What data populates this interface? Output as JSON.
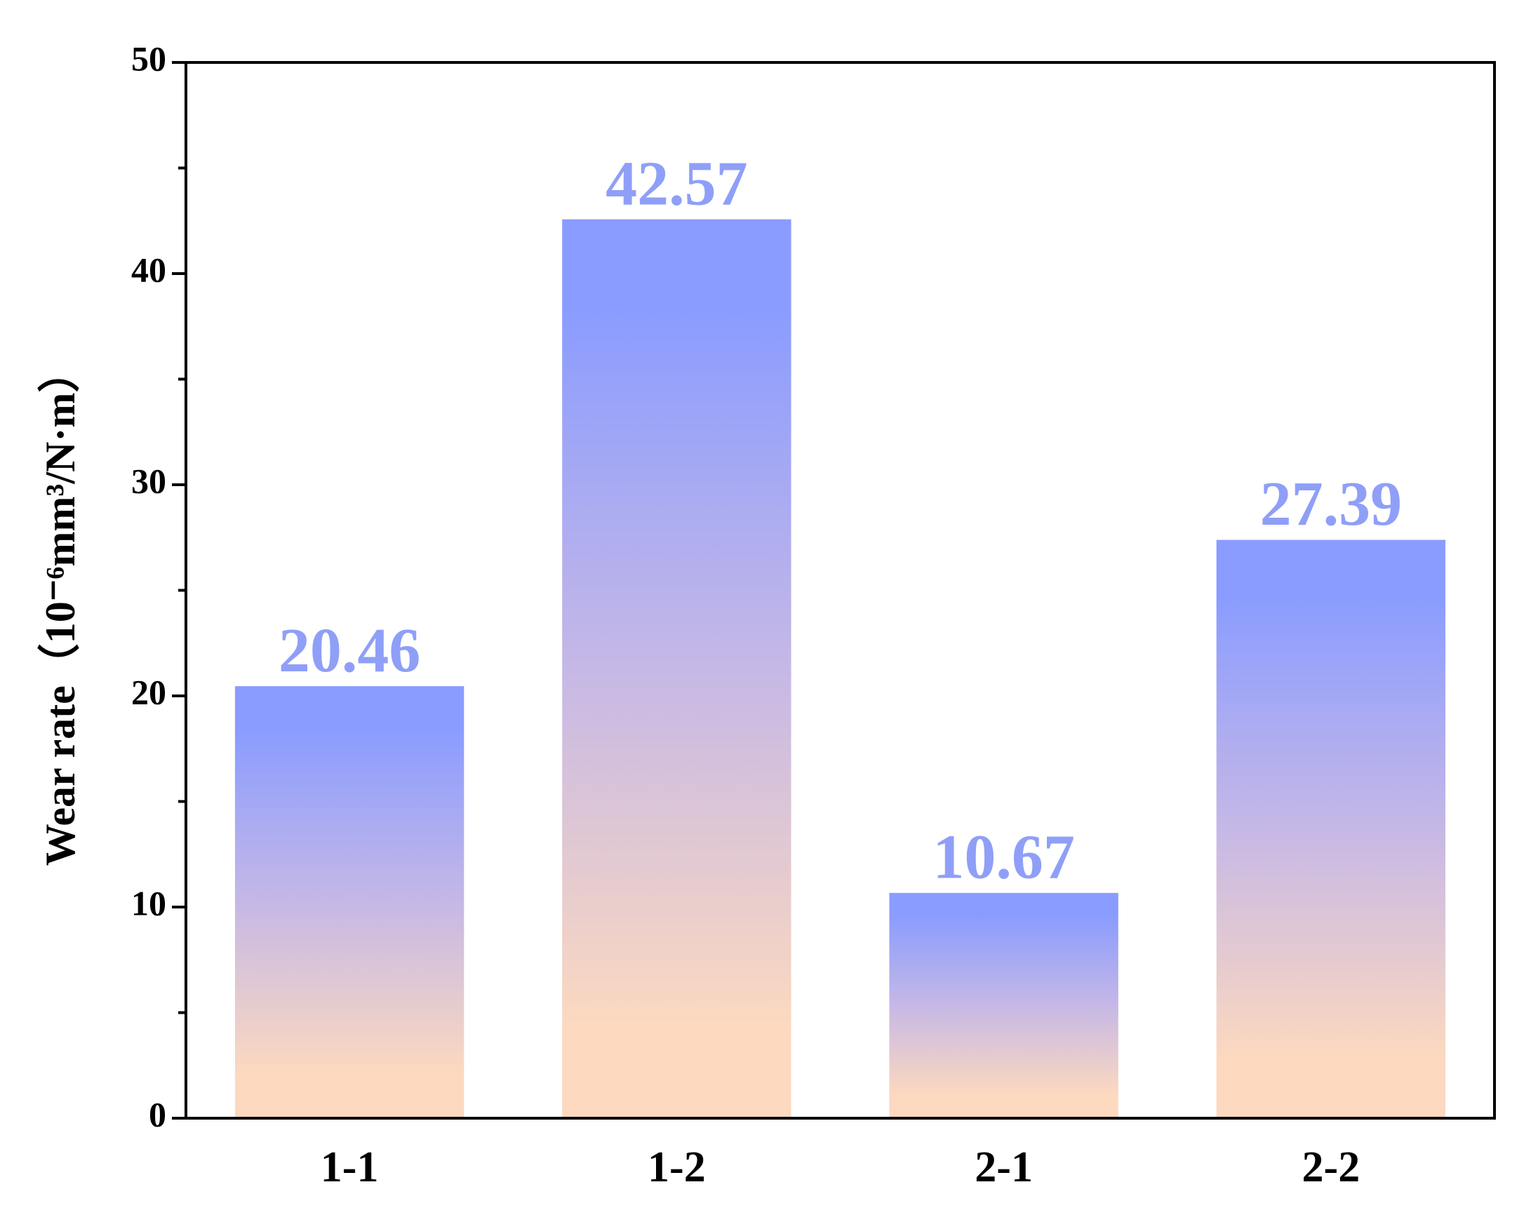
{
  "chart_data": {
    "type": "bar",
    "y_label": "Wear rate（10⁻⁶mm³/N·m）",
    "categories": [
      "1-1",
      "1-2",
      "2-1",
      "2-2"
    ],
    "values": [
      20.46,
      42.57,
      10.67,
      27.39
    ],
    "colors": [
      "#8a9cff",
      "#c6b8e6",
      "#fcd9bf"
    ],
    "value_label_color": "#8f9ff8",
    "ylim": [
      0,
      50
    ],
    "yticks": [
      0,
      10,
      20,
      30,
      40,
      50
    ],
    "yticks_minor": [
      5,
      15,
      25,
      35,
      45
    ],
    "grid": false
  }
}
